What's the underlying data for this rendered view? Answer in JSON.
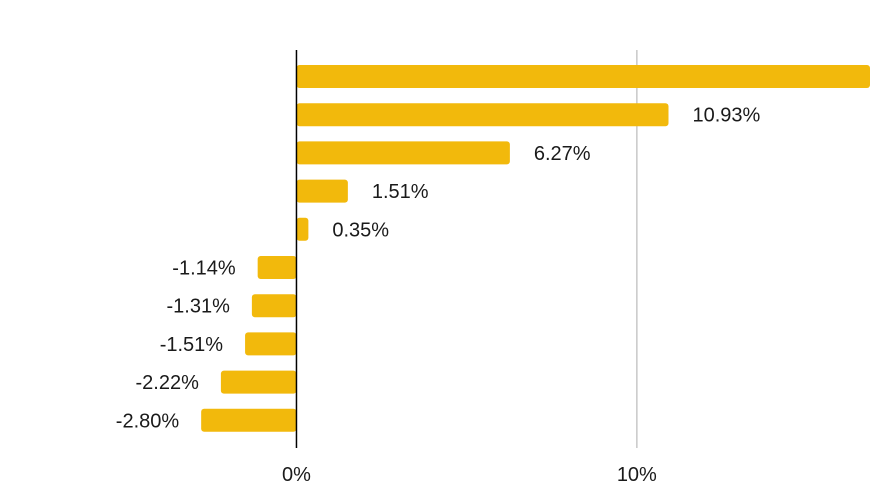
{
  "chart_data": {
    "type": "bar",
    "orientation": "horizontal",
    "values": [
      16.85,
      10.93,
      6.27,
      1.51,
      0.35,
      -1.14,
      -1.31,
      -1.51,
      -2.22,
      -2.8
    ],
    "data_labels": [
      "",
      "10.93%",
      "6.27%",
      "1.51%",
      "0.35%",
      "-1.14%",
      "-1.31%",
      "-1.51%",
      "-2.22%",
      "-2.80%"
    ],
    "x_ticks": [
      {
        "value": 0,
        "label": "0%"
      },
      {
        "value": 10,
        "label": "10%"
      }
    ],
    "xlim": [
      -8.71,
      16.85
    ],
    "grid": true,
    "bar_color": "#F2B90C",
    "axis_color": "#000000",
    "grid_color": "#C8C8C8"
  }
}
